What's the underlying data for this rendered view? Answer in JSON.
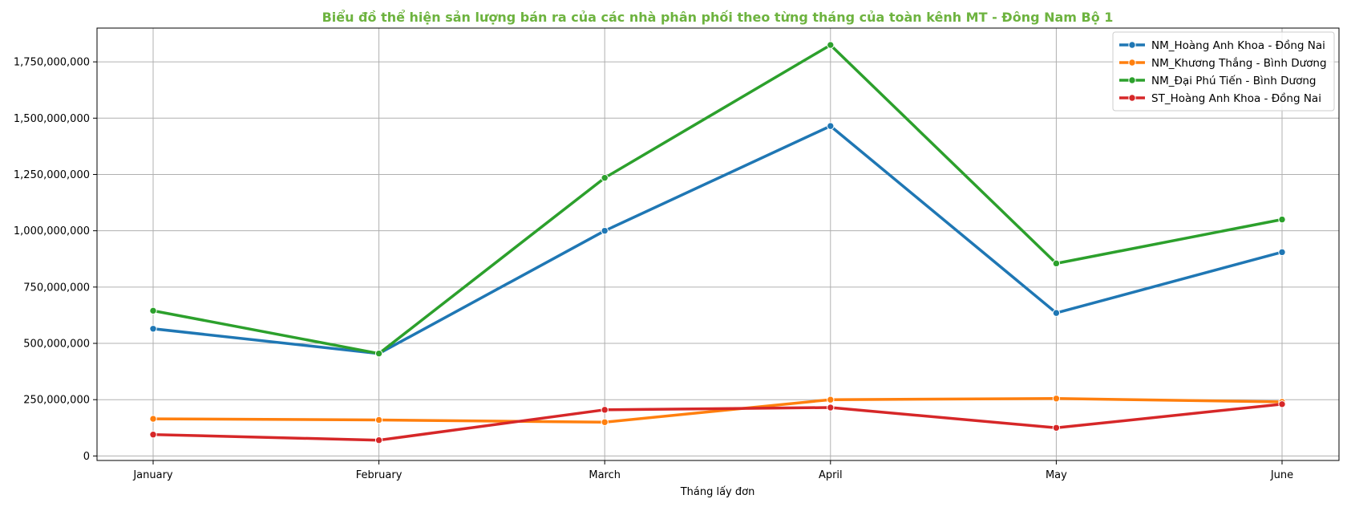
{
  "chart_data": {
    "type": "line",
    "title": "Biểu đồ thể hiện sản lượng bán ra của các nhà phân phối theo từng tháng của toàn kênh MT - Đông Nam Bộ 1",
    "title_color": "#6db33f",
    "xlabel": "Tháng lấy đơn",
    "ylabel": "",
    "categories": [
      "January",
      "February",
      "March",
      "April",
      "May",
      "June"
    ],
    "ylim": [
      -20000000,
      1900000000
    ],
    "yticks": [
      0,
      250000000,
      500000000,
      750000000,
      1000000000,
      1250000000,
      1500000000,
      1750000000
    ],
    "ytick_labels": [
      "0",
      "250,000,000",
      "500,000,000",
      "750,000,000",
      "1,000,000,000",
      "1,250,000,000",
      "1,500,000,000",
      "1,750,000,000"
    ],
    "grid": true,
    "legend_position": "top-right",
    "series": [
      {
        "name": "NM_Hoàng Anh Khoa - Đồng Nai",
        "color": "#1f77b4",
        "values": [
          565000000,
          455000000,
          1000000000,
          1465000000,
          635000000,
          905000000
        ]
      },
      {
        "name": "NM_Khương Thắng - Bình Dương",
        "color": "#ff7f0e",
        "values": [
          165000000,
          160000000,
          150000000,
          250000000,
          255000000,
          240000000
        ]
      },
      {
        "name": "NM_Đại Phú Tiến - Bình Dương",
        "color": "#2ca02c",
        "values": [
          645000000,
          455000000,
          1235000000,
          1825000000,
          855000000,
          1050000000
        ]
      },
      {
        "name": "ST_Hoàng Anh Khoa - Đồng Nai",
        "color": "#d62728",
        "values": [
          95000000,
          70000000,
          205000000,
          215000000,
          125000000,
          230000000
        ]
      }
    ]
  }
}
